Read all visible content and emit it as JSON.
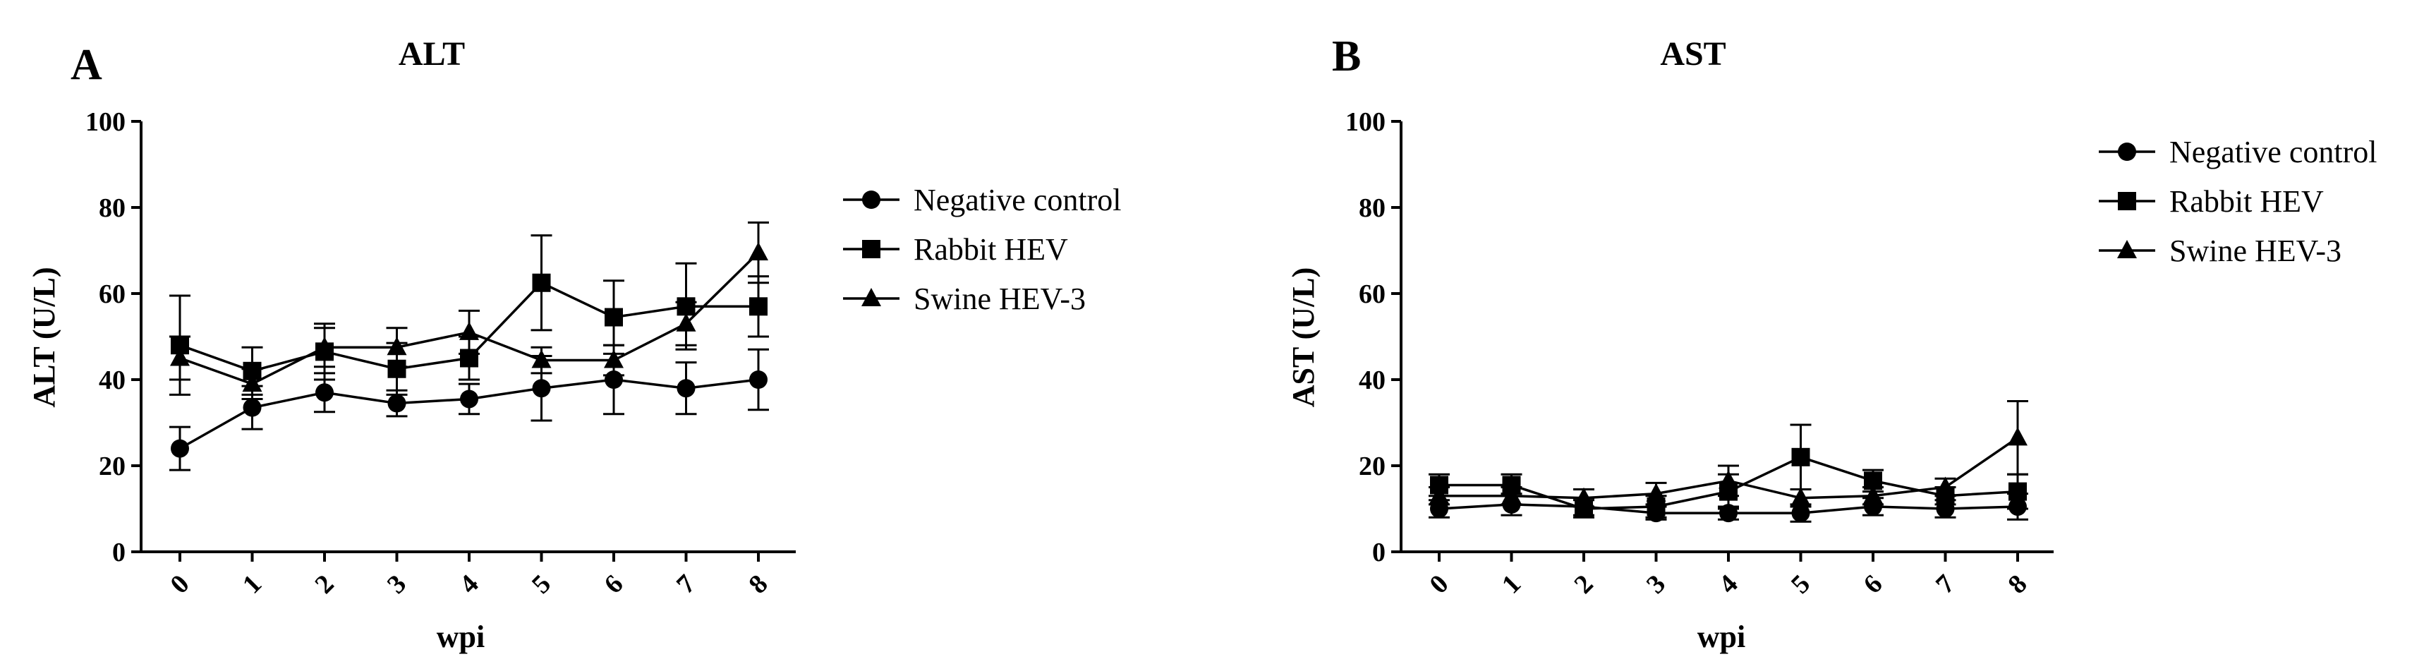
{
  "chart_data": [
    {
      "panel_letter": "A",
      "type": "line",
      "title": "ALT",
      "xlabel": "wpi",
      "ylabel": "ALT (U/L)",
      "x": [
        0,
        1,
        2,
        3,
        4,
        5,
        6,
        7,
        8
      ],
      "ylim": [
        0,
        100
      ],
      "yticks": [
        0,
        20,
        40,
        60,
        80,
        100
      ],
      "legend_position": "right",
      "series": [
        {
          "name": "Negative control",
          "marker": "circle",
          "values": [
            24,
            33.5,
            37,
            34.5,
            35.5,
            38,
            40,
            38,
            40
          ],
          "errors": [
            5,
            5,
            4.5,
            3,
            3.5,
            7.5,
            8,
            6,
            7
          ]
        },
        {
          "name": "Rabbit HEV",
          "marker": "square",
          "values": [
            48,
            42,
            46.5,
            42.5,
            45,
            62.5,
            54.5,
            57,
            57
          ],
          "errors": [
            11.5,
            5.5,
            6.5,
            6,
            5,
            11,
            8.5,
            10,
            7
          ]
        },
        {
          "name": "Swine HEV-3",
          "marker": "triangle",
          "values": [
            45,
            39,
            47.5,
            47.5,
            51,
            44.5,
            44.5,
            53,
            69.5
          ],
          "errors": [
            5,
            3.5,
            4.5,
            4.5,
            5,
            3,
            3.5,
            5,
            7
          ]
        }
      ]
    },
    {
      "panel_letter": "B",
      "type": "line",
      "title": "AST",
      "xlabel": "wpi",
      "ylabel": "AST (U/L)",
      "x": [
        0,
        1,
        2,
        3,
        4,
        5,
        6,
        7,
        8
      ],
      "ylim": [
        0,
        100
      ],
      "yticks": [
        0,
        20,
        40,
        60,
        80,
        100
      ],
      "legend_position": "top-right",
      "series": [
        {
          "name": "Negative control",
          "marker": "circle",
          "values": [
            10,
            11,
            10.5,
            9,
            9,
            9,
            10.5,
            10,
            10.5
          ],
          "errors": [
            2,
            2.5,
            2,
            1.5,
            1.5,
            2,
            2,
            2,
            3
          ]
        },
        {
          "name": "Rabbit HEV",
          "marker": "square",
          "values": [
            15.5,
            15.5,
            10,
            10.5,
            14,
            22,
            16.5,
            13,
            14
          ],
          "errors": [
            2.5,
            2.5,
            2,
            2.5,
            4,
            7.5,
            2.5,
            2,
            4
          ]
        },
        {
          "name": "Swine HEV-3",
          "marker": "triangle",
          "values": [
            13,
            13,
            12.5,
            13.5,
            16.5,
            12.5,
            13,
            15,
            26.5
          ],
          "errors": [
            2,
            2,
            2,
            2.5,
            3.5,
            2,
            2,
            2,
            8.5
          ]
        }
      ]
    }
  ]
}
